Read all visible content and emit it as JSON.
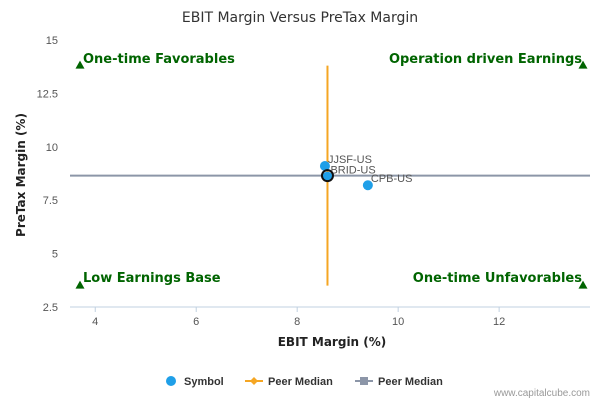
{
  "chart_data": {
    "type": "scatter",
    "title": "EBIT Margin Versus PreTax Margin",
    "xlabel": "EBIT Margin (%)",
    "ylabel": "PreTax Margin (%)",
    "xlim": [
      3.5,
      13.8
    ],
    "ylim": [
      2.5,
      15
    ],
    "x_ticks": [
      "4",
      "6",
      "8",
      "10",
      "12"
    ],
    "y_ticks": [
      "2.5",
      "5",
      "7.5",
      "10",
      "12.5",
      "15"
    ],
    "x_tick_values": [
      4,
      6,
      8,
      10,
      12
    ],
    "y_tick_values": [
      2.5,
      5,
      7.5,
      10,
      12.5,
      15
    ],
    "grid": false,
    "legend_position": "bottom",
    "points": [
      {
        "label": "JJSF-US",
        "x": 8.55,
        "y": 9.1
      },
      {
        "label": "BRID-US",
        "x": 8.6,
        "y": 8.6
      },
      {
        "label": "CPB-US",
        "x": 9.4,
        "y": 8.2
      }
    ],
    "peer_median": {
      "x": 8.6,
      "y": 8.65
    },
    "peer_median_vertical_range": [
      3.5,
      13.8
    ],
    "quadrants": {
      "top_left": "One-time Favorables",
      "top_right": "Operation driven Earnings",
      "bottom_left": "Low Earnings Base",
      "bottom_right": "One-time Unfavorables"
    },
    "legend": [
      {
        "label": "Symbol",
        "marker": "circle",
        "color": "#1f9fe8"
      },
      {
        "label": "Peer Median",
        "marker": "diamond",
        "color": "#f5a623"
      },
      {
        "label": "Peer Median",
        "marker": "square",
        "color": "#8c96a8"
      }
    ],
    "colors": {
      "symbol": "#1f9fe8",
      "vertical_median": "#f5a623",
      "horizontal_median": "#8c96a8",
      "quadrant_text": "#006400",
      "axis": "#c0d0e0"
    }
  },
  "credit": "www.capitalcube.com"
}
